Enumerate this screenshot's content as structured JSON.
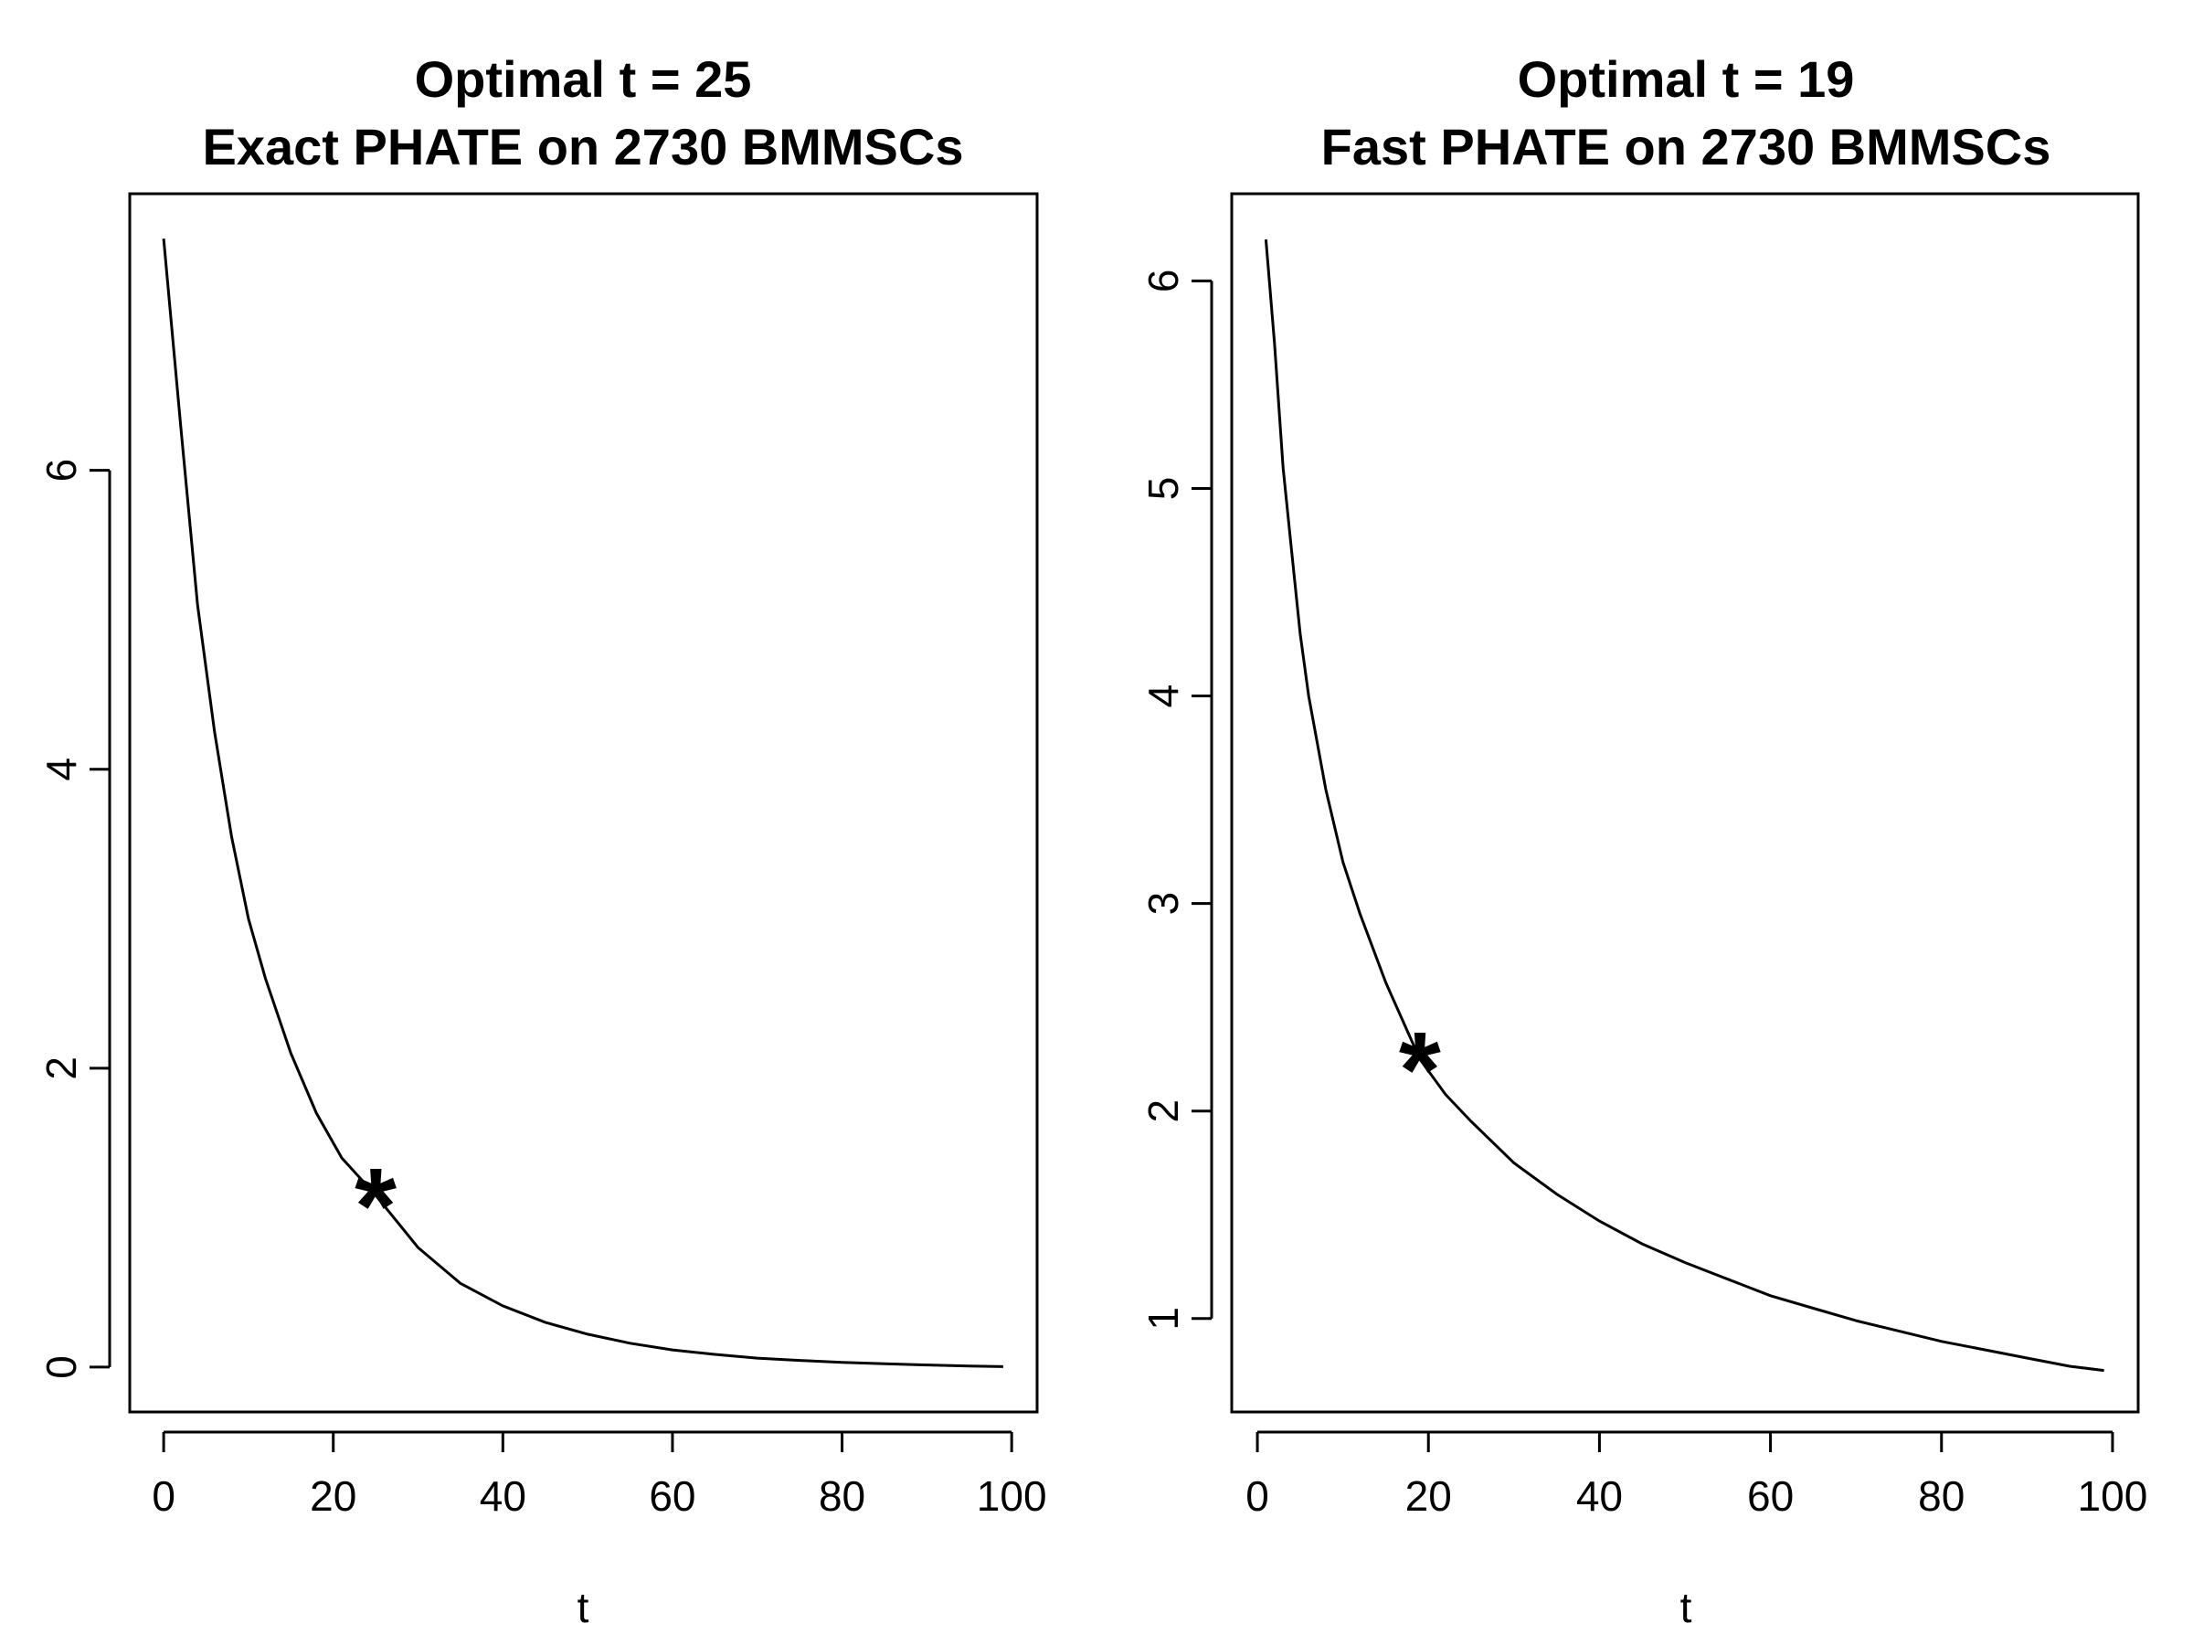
{
  "chart_data": [
    {
      "type": "line",
      "title_line1": "Optimal t = 25",
      "title_line2": "Exact PHATE on 2730 BMMSCs",
      "xlabel": "t",
      "ylabel": "",
      "xlim": [
        -4,
        103
      ],
      "ylim": [
        -0.3,
        7.85
      ],
      "xticks": [
        0,
        20,
        40,
        60,
        80,
        100
      ],
      "yticks": [
        0,
        2,
        4,
        6
      ],
      "curve_t": [
        0,
        2,
        4,
        6,
        8,
        10,
        12,
        15,
        18,
        21,
        25,
        30,
        35,
        40,
        45,
        50,
        55,
        60,
        65,
        70,
        75,
        80,
        85,
        90,
        95,
        99
      ],
      "curve_y": [
        7.55,
        6.3,
        5.1,
        4.25,
        3.55,
        3.0,
        2.6,
        2.1,
        1.7,
        1.4,
        1.15,
        0.8,
        0.56,
        0.41,
        0.3,
        0.22,
        0.16,
        0.115,
        0.085,
        0.06,
        0.045,
        0.032,
        0.022,
        0.014,
        0.007,
        0.003
      ],
      "marker": {
        "symbol": "*",
        "t": 25,
        "y": 1.15
      }
    },
    {
      "type": "line",
      "title_line1": "Optimal t = 19",
      "title_line2": "Fast PHATE on 2730 BMMSCs",
      "xlabel": "t",
      "ylabel": "",
      "xlim": [
        -3,
        103
      ],
      "ylim": [
        0.55,
        6.42
      ],
      "xticks": [
        0,
        20,
        40,
        60,
        80,
        100
      ],
      "yticks": [
        1,
        2,
        3,
        4,
        5,
        6
      ],
      "curve_t": [
        1,
        2,
        3,
        4,
        5,
        6,
        8,
        10,
        12,
        15,
        19,
        22,
        25,
        30,
        35,
        40,
        45,
        50,
        55,
        60,
        65,
        70,
        75,
        80,
        85,
        90,
        95,
        99
      ],
      "curve_y": [
        6.2,
        5.7,
        5.1,
        4.7,
        4.3,
        4.0,
        3.55,
        3.2,
        2.95,
        2.62,
        2.25,
        2.08,
        1.95,
        1.75,
        1.6,
        1.47,
        1.36,
        1.27,
        1.19,
        1.11,
        1.05,
        0.99,
        0.94,
        0.89,
        0.85,
        0.81,
        0.77,
        0.75
      ],
      "marker": {
        "symbol": "*",
        "t": 19,
        "y": 2.25
      }
    }
  ]
}
